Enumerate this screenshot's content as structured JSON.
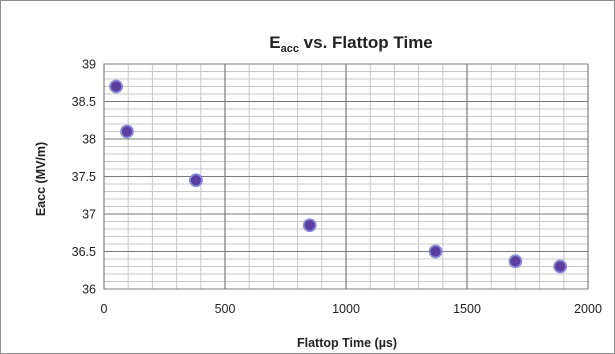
{
  "chart_data": {
    "type": "scatter",
    "title": {
      "main": "E",
      "subscript": "acc",
      "rest": " vs. Flattop Time"
    },
    "xlabel": "Flattop Time (µs)",
    "ylabel": "Eacc (MV/m)",
    "xlim": [
      0,
      2000
    ],
    "ylim": [
      36,
      39
    ],
    "x_major_step": 500,
    "x_minor_step": 100,
    "y_major_step": 0.5,
    "y_minor_step": 0.1,
    "x_tick_labels": [
      "0",
      "500",
      "1000",
      "1500",
      "2000"
    ],
    "y_tick_labels": [
      "36",
      "36.5",
      "37",
      "37.5",
      "38",
      "38.5",
      "39"
    ],
    "grid": true,
    "legend": "none",
    "series": [
      {
        "marker_color": "#5b3fa0",
        "marker_edge_color": "#8a8ad8",
        "points": [
          {
            "x": 50,
            "y": 38.7
          },
          {
            "x": 95,
            "y": 38.1
          },
          {
            "x": 380,
            "y": 37.45
          },
          {
            "x": 850,
            "y": 36.85
          },
          {
            "x": 1370,
            "y": 36.5
          },
          {
            "x": 1700,
            "y": 36.37
          },
          {
            "x": 1885,
            "y": 36.3
          }
        ]
      }
    ]
  }
}
